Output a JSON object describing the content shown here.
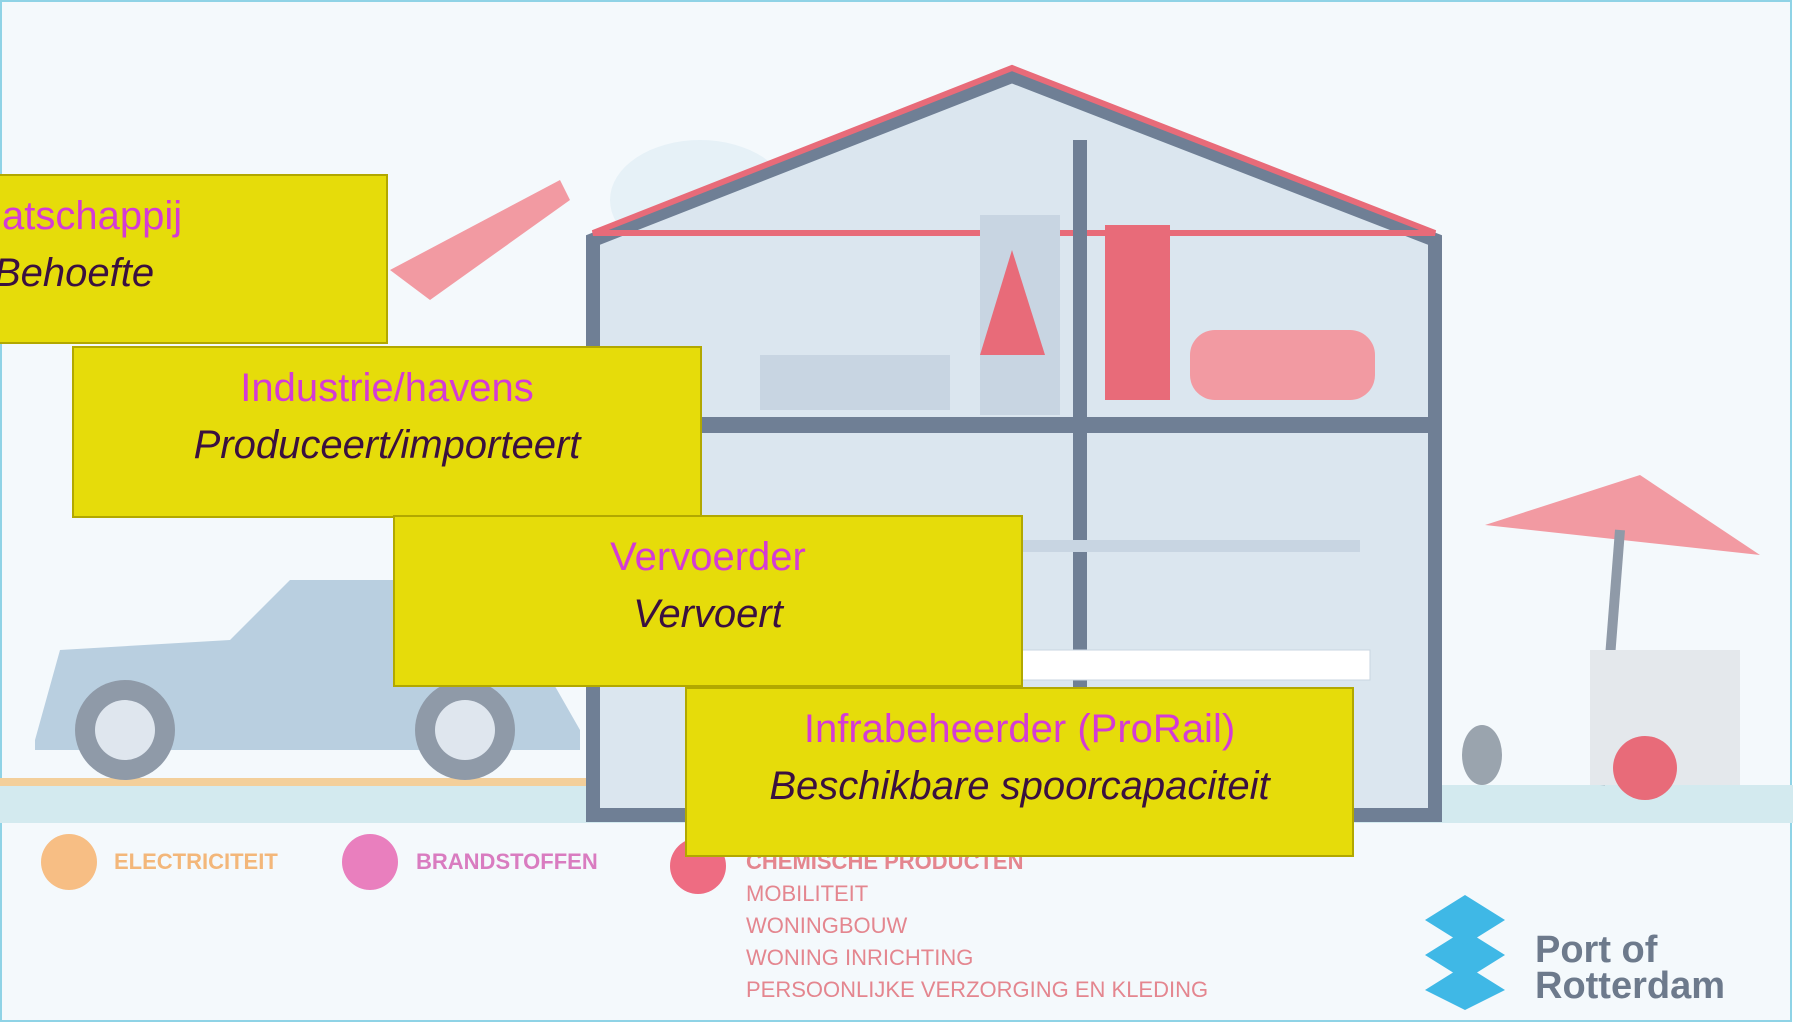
{
  "boxes": [
    {
      "title": "atschappij",
      "subtitle": "Behoefte"
    },
    {
      "title": "Industrie/havens",
      "subtitle": "Produceert/importeert"
    },
    {
      "title": "Vervoerder",
      "subtitle": "Vervoert"
    },
    {
      "title": "Infrabeheerder (ProRail)",
      "subtitle": "Beschikbare spoorcapaciteit"
    }
  ],
  "legend": {
    "items": [
      "ELECTRICITEIT",
      "BRANDSTOFFEN",
      "CHEMISCHE PRODUCTEN"
    ],
    "sublist": [
      "MOBILITEIT",
      "WONINGBOUW",
      "WONING INRICHTING",
      "PERSOONLIJKE VERZORGING EN KLEDING"
    ]
  },
  "logo": {
    "line1": "Port of",
    "line2": "Rotterdam"
  }
}
